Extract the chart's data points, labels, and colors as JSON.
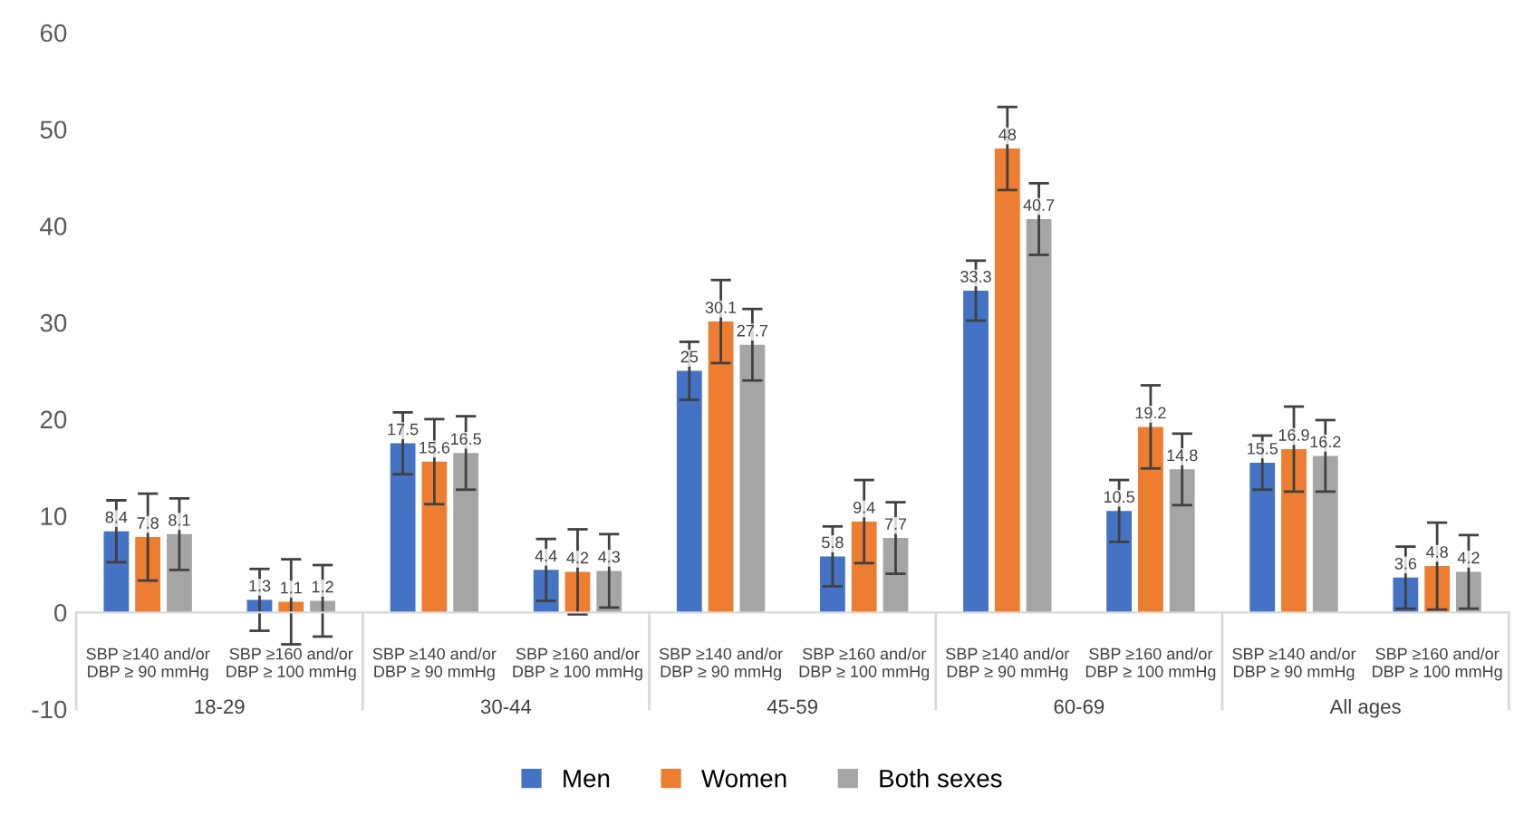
{
  "chart_data": {
    "type": "bar",
    "categories": [
      "SBP ≥140 and/or\nDBP ≥ 90 mmHg",
      "SBP ≥160 and/or\nDBP ≥ 100 mmHg",
      "SBP ≥140 and/or\nDBP ≥ 90 mmHg",
      "SBP ≥160 and/or\nDBP ≥ 100 mmHg",
      "SBP ≥140 and/or\nDBP ≥ 90 mmHg",
      "SBP ≥160 and/or\nDBP ≥ 100 mmHg",
      "SBP ≥140 and/or\nDBP ≥ 90 mmHg",
      "SBP ≥160 and/or\nDBP ≥ 100 mmHg",
      "SBP ≥140 and/or\nDBP ≥ 90 mmHg",
      "SBP ≥160 and/or\nDBP ≥ 100 mmHg"
    ],
    "series": [
      {
        "name": "Men",
        "color": "#4472c4",
        "values": [
          8.4,
          1.3,
          17.5,
          4.4,
          25,
          5.8,
          33.3,
          10.5,
          15.5,
          3.6
        ],
        "errors": [
          3.2,
          3.2,
          3.2,
          3.2,
          3.0,
          3.1,
          3.1,
          3.2,
          2.8,
          3.2
        ]
      },
      {
        "name": "Women",
        "color": "#ed7d31",
        "values": [
          7.8,
          1.1,
          15.6,
          4.2,
          30.1,
          9.4,
          48,
          19.2,
          16.9,
          4.8
        ],
        "errors": [
          4.5,
          4.4,
          4.4,
          4.4,
          4.3,
          4.3,
          4.3,
          4.3,
          4.4,
          4.5
        ]
      },
      {
        "name": "Both sexes",
        "color": "#a5a5a5",
        "values": [
          8.1,
          1.2,
          16.5,
          4.3,
          27.7,
          7.7,
          40.7,
          14.8,
          16.2,
          4.2
        ],
        "errors": [
          3.7,
          3.7,
          3.8,
          3.8,
          3.7,
          3.7,
          3.7,
          3.7,
          3.7,
          3.8
        ]
      }
    ],
    "annotations": [
      "18-29",
      "30-44",
      "45-59",
      "60-69",
      "All ages"
    ],
    "ylim": [
      -10,
      60
    ],
    "yticks": [
      -10,
      0,
      10,
      20,
      30,
      40,
      50,
      60
    ],
    "data_labels": true,
    "grid": false,
    "legend": "bottom"
  }
}
